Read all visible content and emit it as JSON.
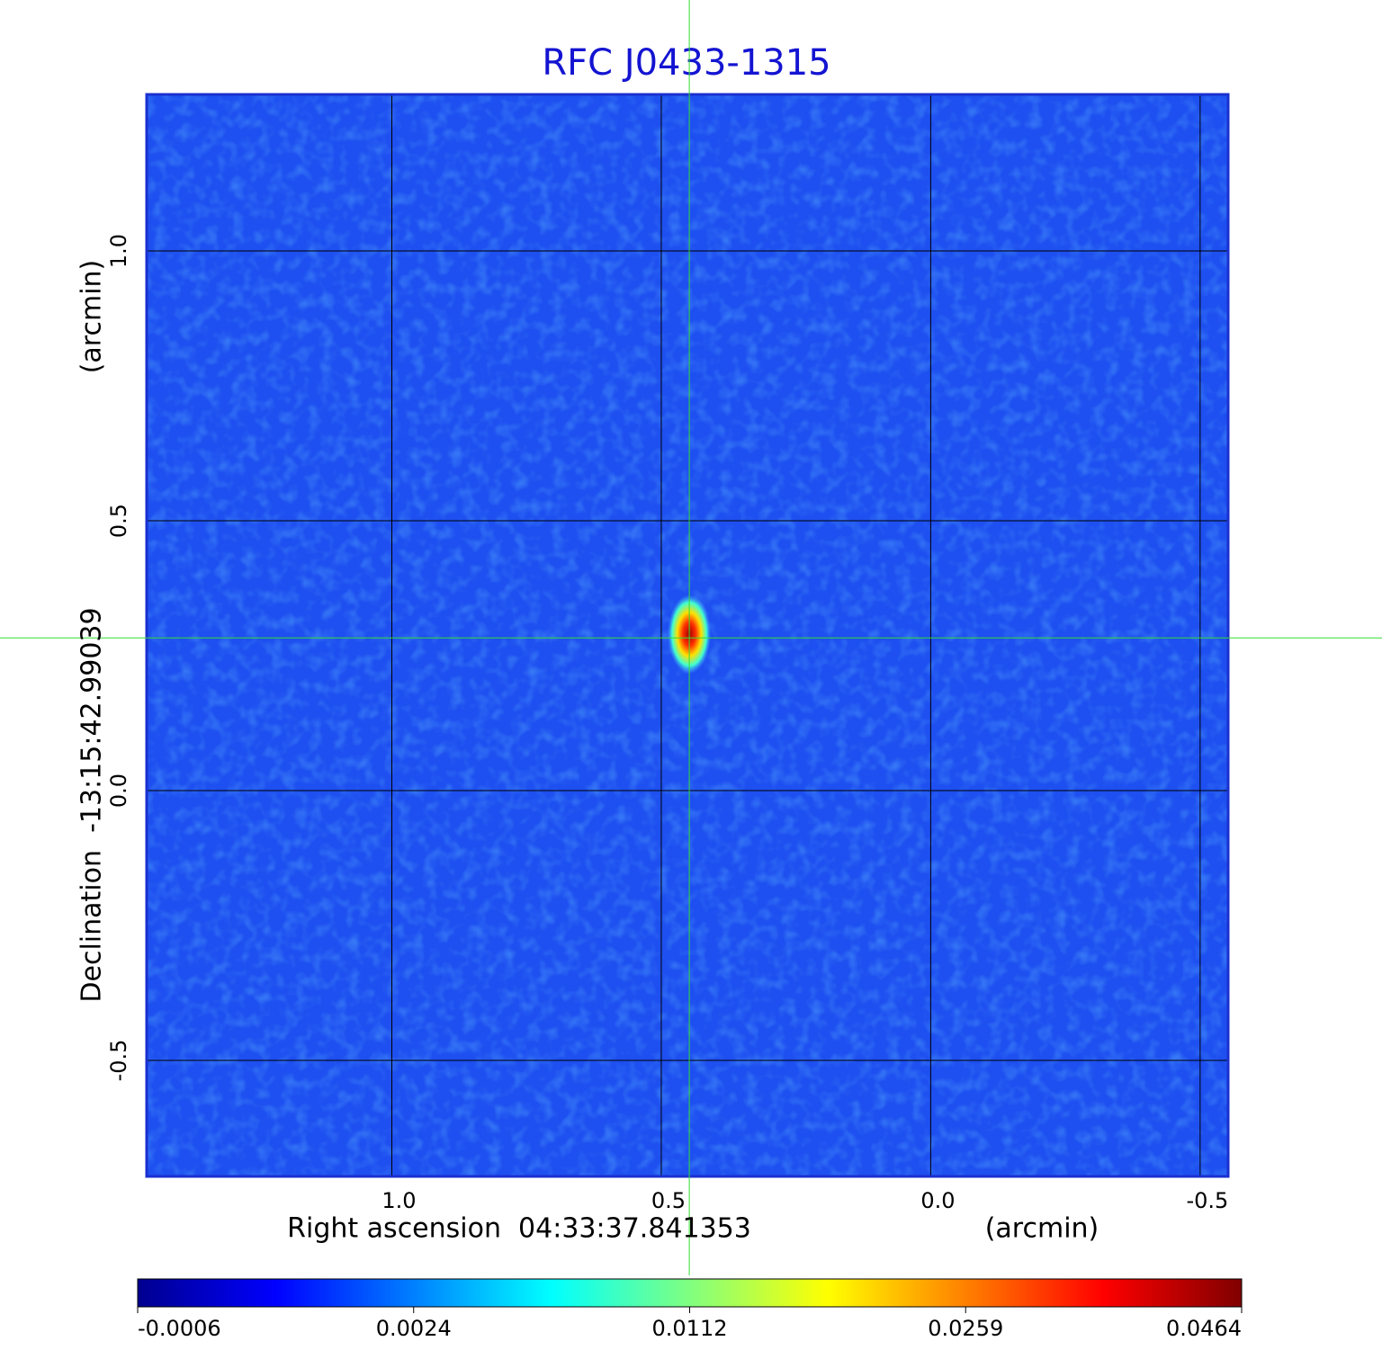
{
  "chart_data": {
    "type": "image",
    "title": "RFC J0433-1315",
    "x_label": "Right ascension  04:33:37.841353",
    "x_unit": "(arcmin)",
    "y_label": "Declination  -13:15:42.99039",
    "y_unit": "(arcmin)",
    "xlim": [
      1.455,
      -0.552
    ],
    "ylim": [
      -0.715,
      1.29
    ],
    "xticks": [
      {
        "value": 1,
        "label": "1.0"
      },
      0.5,
      {
        "value": 0,
        "label": "0.0"
      },
      -0.5
    ],
    "yticks": [
      -0.5,
      {
        "value": 0,
        "label": "0.0"
      },
      0.5,
      {
        "value": 1,
        "label": "1.0"
      }
    ],
    "grid": true,
    "background_color": "#1e4ff0",
    "source": {
      "x": 0.448,
      "y": 0.29,
      "peak": 0.0464
    },
    "crosshair": {
      "x": 0.448,
      "y": 0.283,
      "color": "#33dd33"
    },
    "colorbar": {
      "ticks": [
        -0.0006,
        0.0024,
        0.0112,
        0.0259,
        0.0464
      ],
      "colors": [
        "#00008f",
        "#0000ff",
        "#0080ff",
        "#00ffff",
        "#80ff80",
        "#ffff00",
        "#ff8000",
        "#ff0000",
        "#800000"
      ]
    }
  }
}
